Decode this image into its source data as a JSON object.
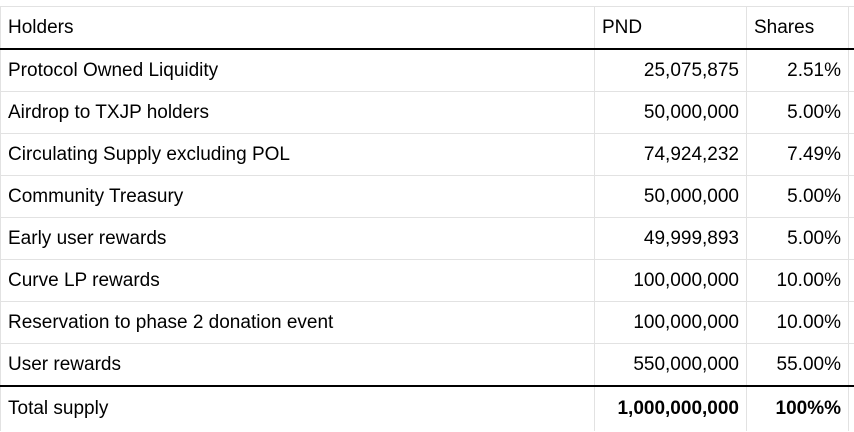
{
  "table": {
    "headers": {
      "holders": "Holders",
      "pnd": "PND",
      "shares": "Shares"
    },
    "rows": [
      {
        "holder": "Protocol Owned Liquidity",
        "pnd": "25,075,875",
        "share": "2.51%"
      },
      {
        "holder": "Airdrop to TXJP holders",
        "pnd": "50,000,000",
        "share": "5.00%"
      },
      {
        "holder": "Circulating Supply excluding POL",
        "pnd": "74,924,232",
        "share": "7.49%"
      },
      {
        "holder": "Community Treasury",
        "pnd": "50,000,000",
        "share": "5.00%"
      },
      {
        "holder": "Early user rewards",
        "pnd": "49,999,893",
        "share": "5.00%"
      },
      {
        "holder": "Curve LP rewards",
        "pnd": "100,000,000",
        "share": "10.00%"
      },
      {
        "holder": "Reservation to phase 2 donation event",
        "pnd": "100,000,000",
        "share": "10.00%"
      },
      {
        "holder": "User rewards",
        "pnd": "550,000,000",
        "share": "55.00%"
      }
    ],
    "total": {
      "holder": "Total supply",
      "pnd": "1,000,000,000",
      "share": "100%%"
    }
  },
  "colors": {
    "gridline": "#e2e2e2",
    "separator": "#000000",
    "text": "#000000",
    "background": "#ffffff"
  }
}
